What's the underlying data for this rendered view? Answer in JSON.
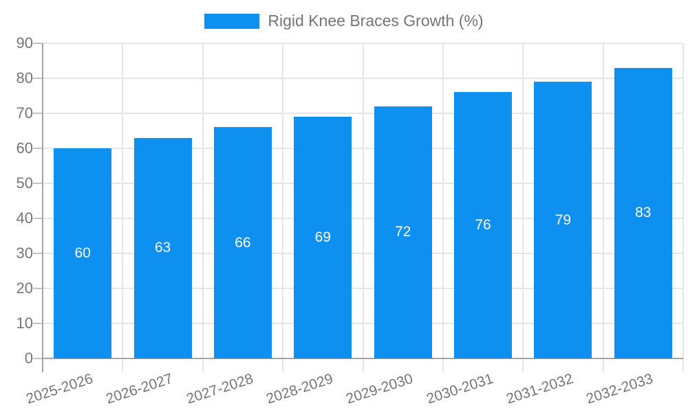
{
  "chart": {
    "colors": {
      "bar": "#0e90f1",
      "text": "#757575",
      "value_text": "#ffffff",
      "grid": "#e6e6e6",
      "axis": "#a3a3a3",
      "tick": "#c2c2c2",
      "background": "#ffffff"
    }
  },
  "chart_data": {
    "type": "bar",
    "title": "",
    "categories": [
      "2025-2026",
      "2026-2027",
      "2027-2028",
      "2028-2029",
      "2029-2030",
      "2030-2031",
      "2031-2032",
      "2032-2033"
    ],
    "series": [
      {
        "name": "Rigid Knee Braces Growth (%)",
        "values": [
          60,
          63,
          66,
          69,
          72,
          76,
          79,
          83
        ]
      }
    ],
    "xlabel": "",
    "ylabel": "",
    "ylim": [
      0,
      90
    ],
    "yticks": [
      0,
      10,
      20,
      30,
      40,
      50,
      60,
      70,
      80,
      90
    ],
    "grid": true,
    "legend_position": "top-center",
    "value_labels_inside_bars": true,
    "x_tick_rotation_deg": -18
  }
}
